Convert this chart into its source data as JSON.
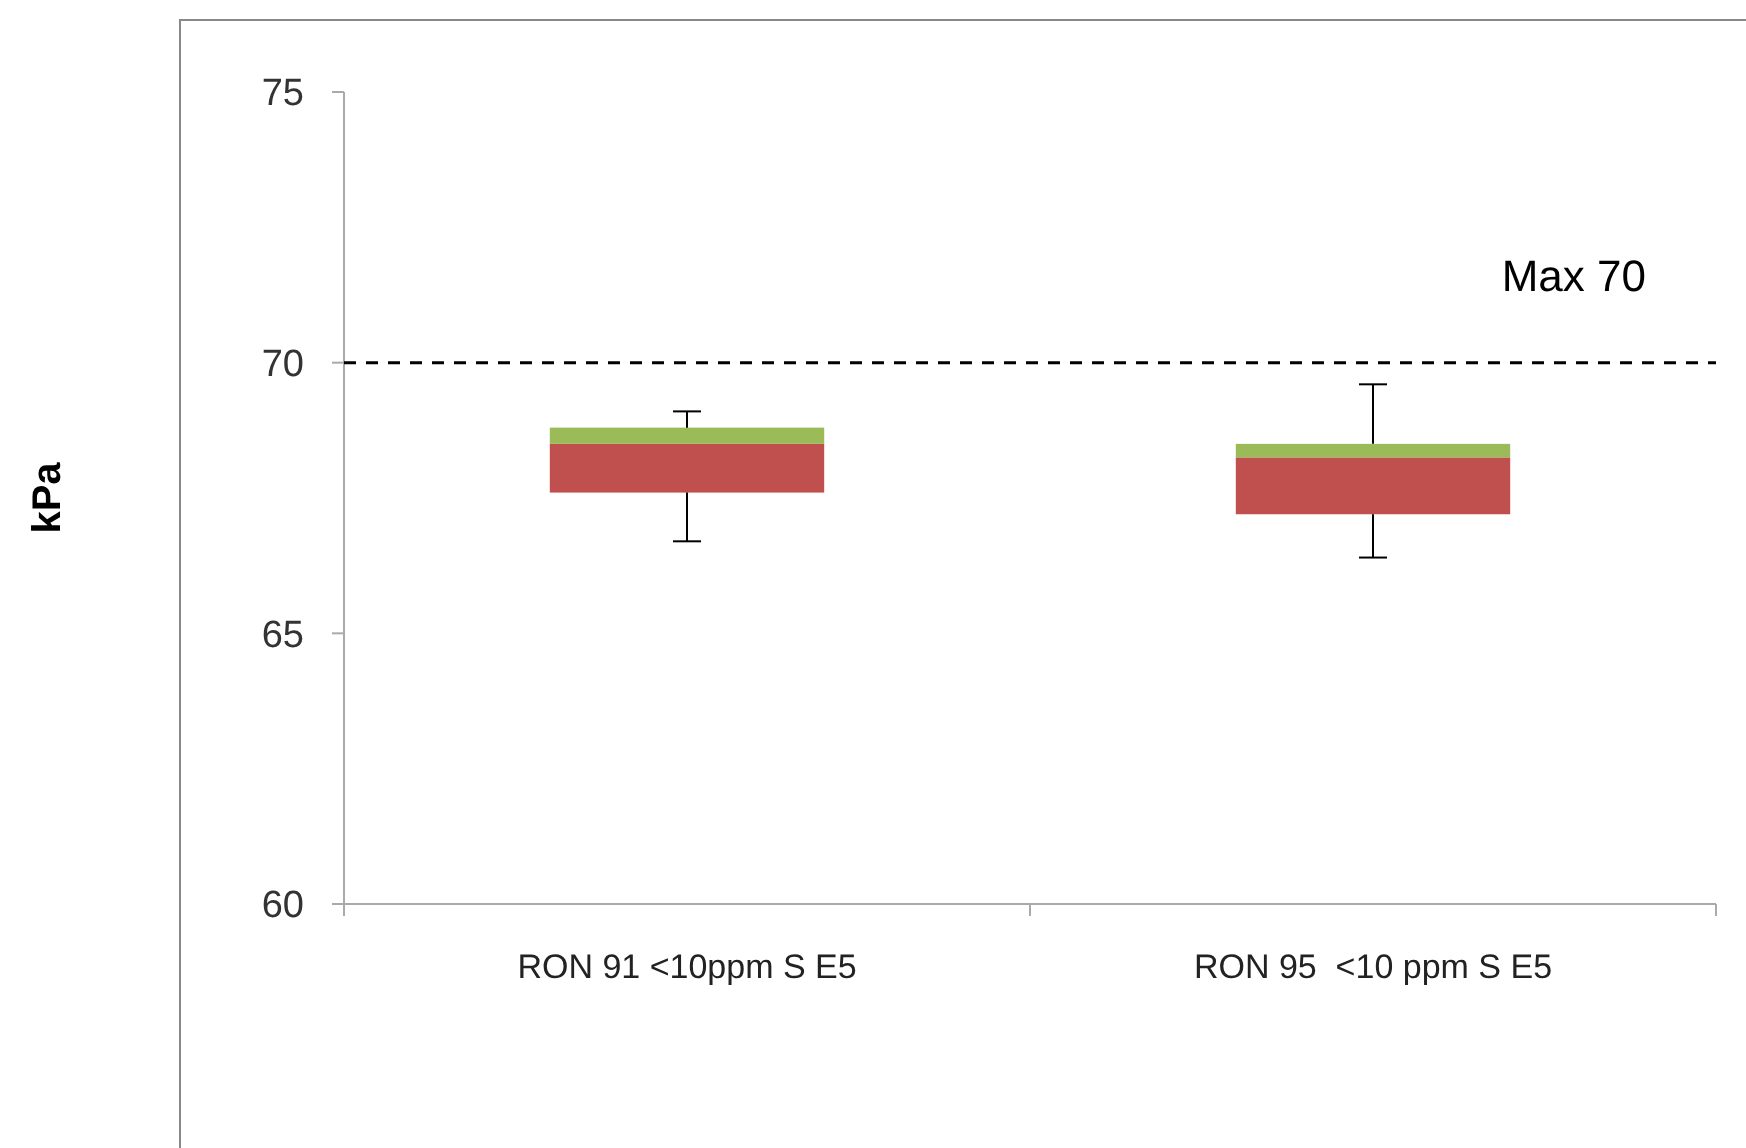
{
  "chart_data": {
    "type": "box",
    "ylabel": "kPa",
    "categories": [
      "RON 91 <10ppm S E5",
      "RON 95  <10 ppm S E5"
    ],
    "boxes": [
      {
        "low": 66.7,
        "q1": 67.6,
        "median": 68.5,
        "q3": 68.8,
        "high": 69.1
      },
      {
        "low": 66.4,
        "q1": 67.2,
        "median": 68.25,
        "q3": 68.5,
        "high": 69.6
      }
    ],
    "ylim": [
      60,
      75
    ],
    "yticks": [
      60,
      65,
      70,
      75
    ],
    "grid": false,
    "ref_lines": [
      {
        "axis": "y",
        "value": 70,
        "label": "Max 70",
        "color": "#000000",
        "line_style": "dashed"
      }
    ]
  }
}
